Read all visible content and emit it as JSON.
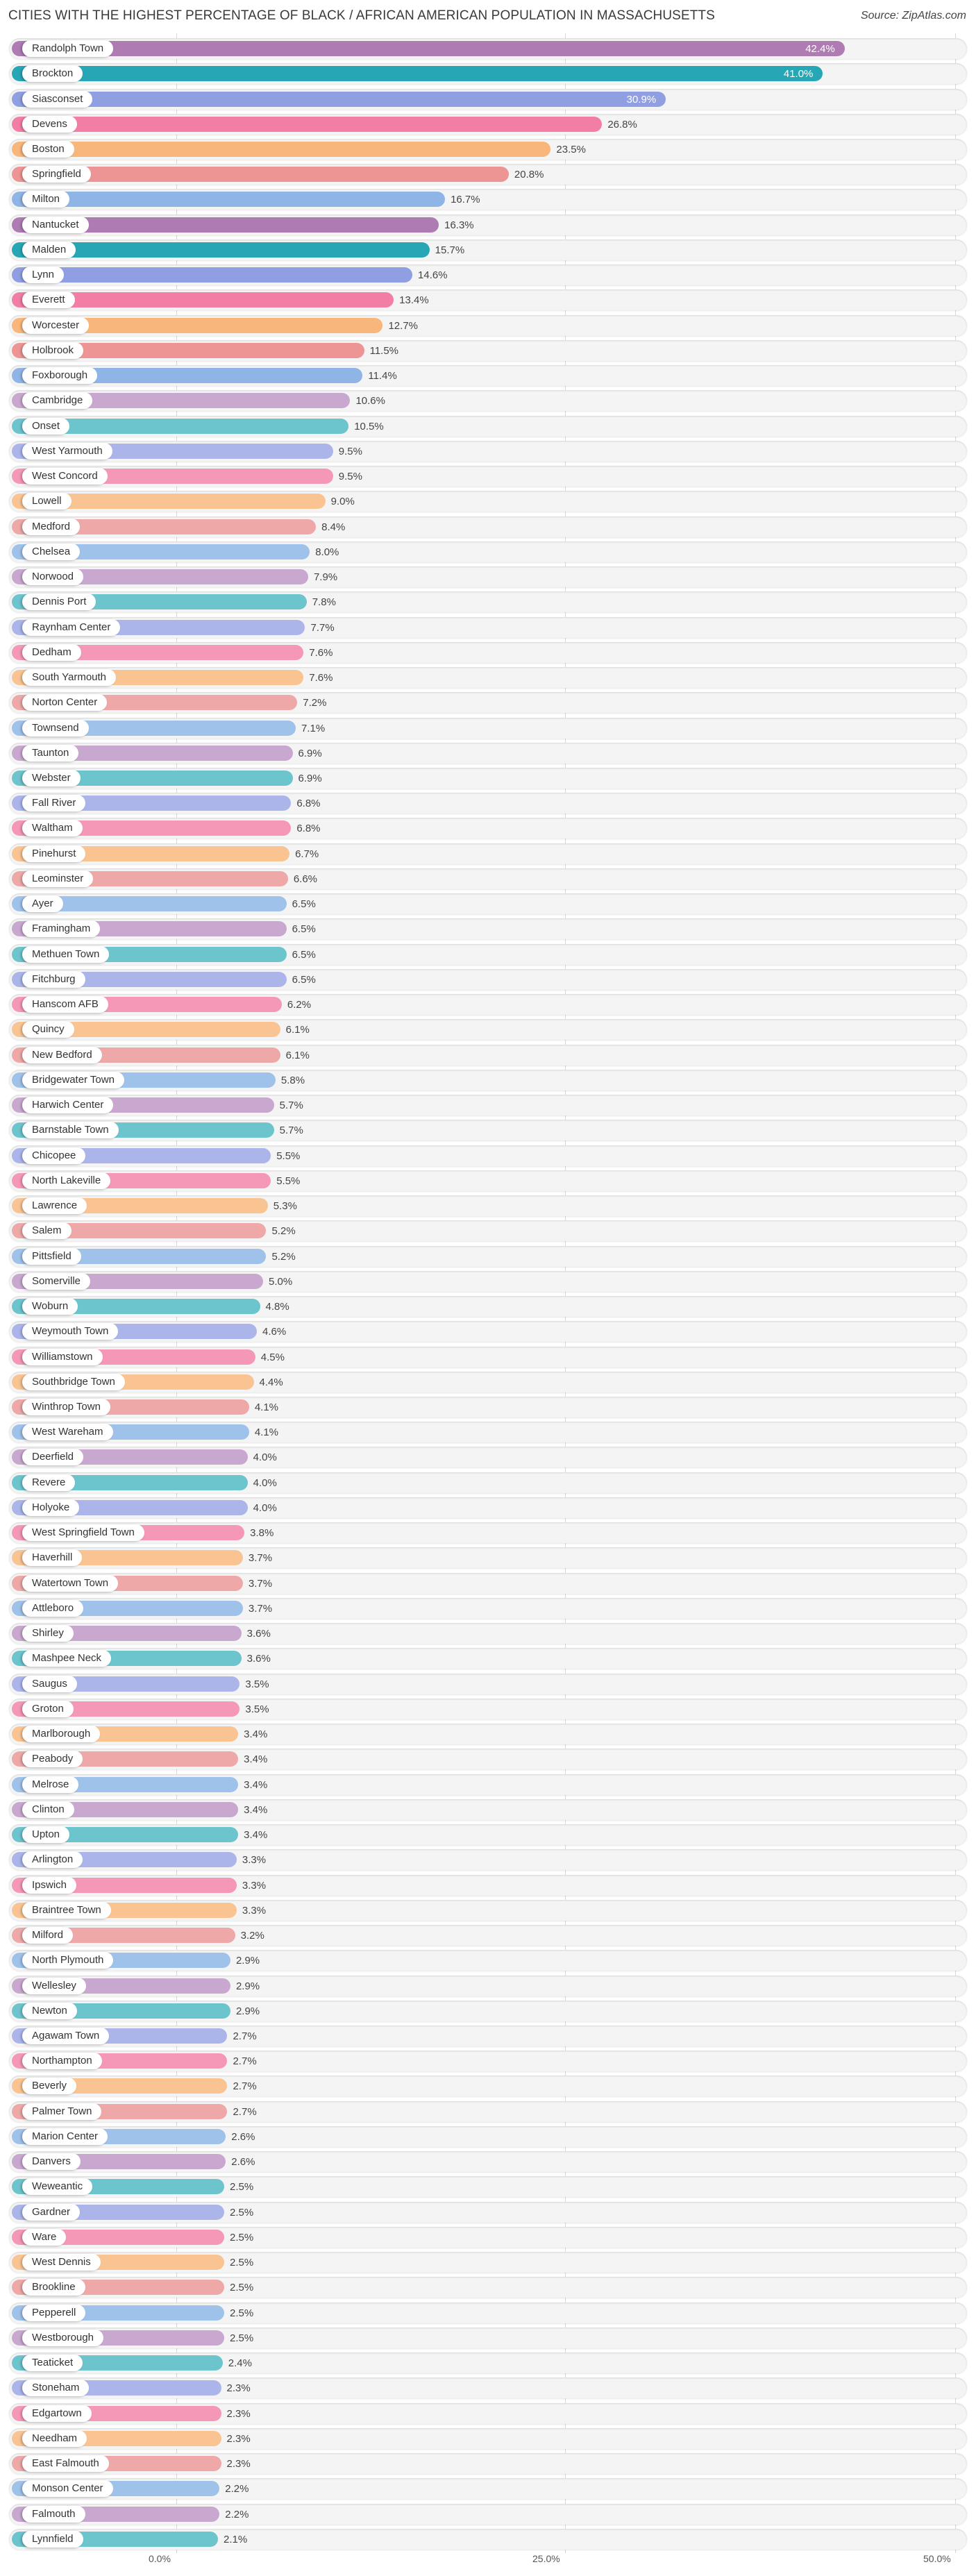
{
  "header": {
    "title": "CITIES WITH THE HIGHEST PERCENTAGE OF BLACK / AFRICAN AMERICAN POPULATION IN MASSACHUSETTS",
    "source": "Source: ZipAtlas.com"
  },
  "axis": {
    "ticks": [
      {
        "label": "0.0%",
        "value": 0
      },
      {
        "label": "25.0%",
        "value": 25
      },
      {
        "label": "50.0%",
        "value": 50
      }
    ]
  },
  "chart_data": {
    "type": "bar",
    "orientation": "horizontal",
    "title": "CITIES WITH THE HIGHEST PERCENTAGE OF BLACK / AFRICAN AMERICAN POPULATION IN MASSACHUSETTS",
    "xlabel": "",
    "ylabel": "",
    "xlim": [
      0,
      50
    ],
    "grid": true,
    "x_ticks": [
      "0.0%",
      "25.0%",
      "50.0%"
    ],
    "categories": [
      "Randolph Town",
      "Brockton",
      "Siasconset",
      "Devens",
      "Boston",
      "Springfield",
      "Milton",
      "Nantucket",
      "Malden",
      "Lynn",
      "Everett",
      "Worcester",
      "Holbrook",
      "Foxborough",
      "Cambridge",
      "Onset",
      "West Yarmouth",
      "West Concord",
      "Lowell",
      "Medford",
      "Chelsea",
      "Norwood",
      "Dennis Port",
      "Raynham Center",
      "Dedham",
      "South Yarmouth",
      "Norton Center",
      "Townsend",
      "Taunton",
      "Webster",
      "Fall River",
      "Waltham",
      "Pinehurst",
      "Leominster",
      "Ayer",
      "Framingham",
      "Methuen Town",
      "Fitchburg",
      "Hanscom AFB",
      "Quincy",
      "New Bedford",
      "Bridgewater Town",
      "Harwich Center",
      "Barnstable Town",
      "Chicopee",
      "North Lakeville",
      "Lawrence",
      "Salem",
      "Pittsfield",
      "Somerville",
      "Woburn",
      "Weymouth Town",
      "Williamstown",
      "Southbridge Town",
      "Winthrop Town",
      "West Wareham",
      "Deerfield",
      "Revere",
      "Holyoke",
      "West Springfield Town",
      "Haverhill",
      "Watertown Town",
      "Attleboro",
      "Shirley",
      "Mashpee Neck",
      "Saugus",
      "Groton",
      "Marlborough",
      "Peabody",
      "Melrose",
      "Clinton",
      "Upton",
      "Arlington",
      "Ipswich",
      "Braintree Town",
      "Milford",
      "North Plymouth",
      "Wellesley",
      "Newton",
      "Agawam Town",
      "Northampton",
      "Beverly",
      "Palmer Town",
      "Marion Center",
      "Danvers",
      "Weweantic",
      "Gardner",
      "Ware",
      "West Dennis",
      "Brookline",
      "Pepperell",
      "Westborough",
      "Teaticket",
      "Stoneham",
      "Edgartown",
      "Needham",
      "East Falmouth",
      "Monson Center",
      "Falmouth",
      "Lynnfield"
    ],
    "values": [
      42.4,
      41.0,
      30.9,
      26.8,
      23.5,
      20.8,
      16.7,
      16.3,
      15.7,
      14.6,
      13.4,
      12.7,
      11.5,
      11.4,
      10.6,
      10.5,
      9.5,
      9.5,
      9.0,
      8.4,
      8.0,
      7.9,
      7.8,
      7.7,
      7.6,
      7.6,
      7.2,
      7.1,
      6.9,
      6.9,
      6.8,
      6.8,
      6.7,
      6.6,
      6.5,
      6.5,
      6.5,
      6.5,
      6.2,
      6.1,
      6.1,
      5.8,
      5.7,
      5.7,
      5.5,
      5.5,
      5.3,
      5.2,
      5.2,
      5.0,
      4.8,
      4.6,
      4.5,
      4.4,
      4.1,
      4.1,
      4.0,
      4.0,
      4.0,
      3.8,
      3.7,
      3.7,
      3.7,
      3.6,
      3.6,
      3.5,
      3.5,
      3.4,
      3.4,
      3.4,
      3.4,
      3.4,
      3.3,
      3.3,
      3.3,
      3.2,
      2.9,
      2.9,
      2.9,
      2.7,
      2.7,
      2.7,
      2.7,
      2.6,
      2.6,
      2.5,
      2.5,
      2.5,
      2.5,
      2.5,
      2.5,
      2.5,
      2.4,
      2.3,
      2.3,
      2.3,
      2.3,
      2.2,
      2.2,
      2.1
    ],
    "value_labels": [
      "42.4%",
      "41.0%",
      "30.9%",
      "26.8%",
      "23.5%",
      "20.8%",
      "16.7%",
      "16.3%",
      "15.7%",
      "14.6%",
      "13.4%",
      "12.7%",
      "11.5%",
      "11.4%",
      "10.6%",
      "10.5%",
      "9.5%",
      "9.5%",
      "9.0%",
      "8.4%",
      "8.0%",
      "7.9%",
      "7.8%",
      "7.7%",
      "7.6%",
      "7.6%",
      "7.2%",
      "7.1%",
      "6.9%",
      "6.9%",
      "6.8%",
      "6.8%",
      "6.7%",
      "6.6%",
      "6.5%",
      "6.5%",
      "6.5%",
      "6.5%",
      "6.2%",
      "6.1%",
      "6.1%",
      "5.8%",
      "5.7%",
      "5.7%",
      "5.5%",
      "5.5%",
      "5.3%",
      "5.2%",
      "5.2%",
      "5.0%",
      "4.8%",
      "4.6%",
      "4.5%",
      "4.4%",
      "4.1%",
      "4.1%",
      "4.0%",
      "4.0%",
      "4.0%",
      "3.8%",
      "3.7%",
      "3.7%",
      "3.7%",
      "3.6%",
      "3.6%",
      "3.5%",
      "3.5%",
      "3.4%",
      "3.4%",
      "3.4%",
      "3.4%",
      "3.4%",
      "3.3%",
      "3.3%",
      "3.3%",
      "3.2%",
      "2.9%",
      "2.9%",
      "2.9%",
      "2.7%",
      "2.7%",
      "2.7%",
      "2.7%",
      "2.6%",
      "2.6%",
      "2.5%",
      "2.5%",
      "2.5%",
      "2.5%",
      "2.5%",
      "2.5%",
      "2.5%",
      "2.4%",
      "2.3%",
      "2.3%",
      "2.3%",
      "2.3%",
      "2.2%",
      "2.2%",
      "2.1%"
    ]
  },
  "colors": {
    "top": [
      "#ae7bb3",
      "#27a7b5",
      "#8f9fe2",
      "#f27ea5",
      "#f8b67b",
      "#ec9594",
      "#8fb5e6"
    ],
    "cycle": [
      "#c9a8cf",
      "#6cc4cd",
      "#abb5ea",
      "#f597b7",
      "#f9c492",
      "#eea8a8",
      "#9fc2ea"
    ],
    "inside_label_count": 3
  }
}
